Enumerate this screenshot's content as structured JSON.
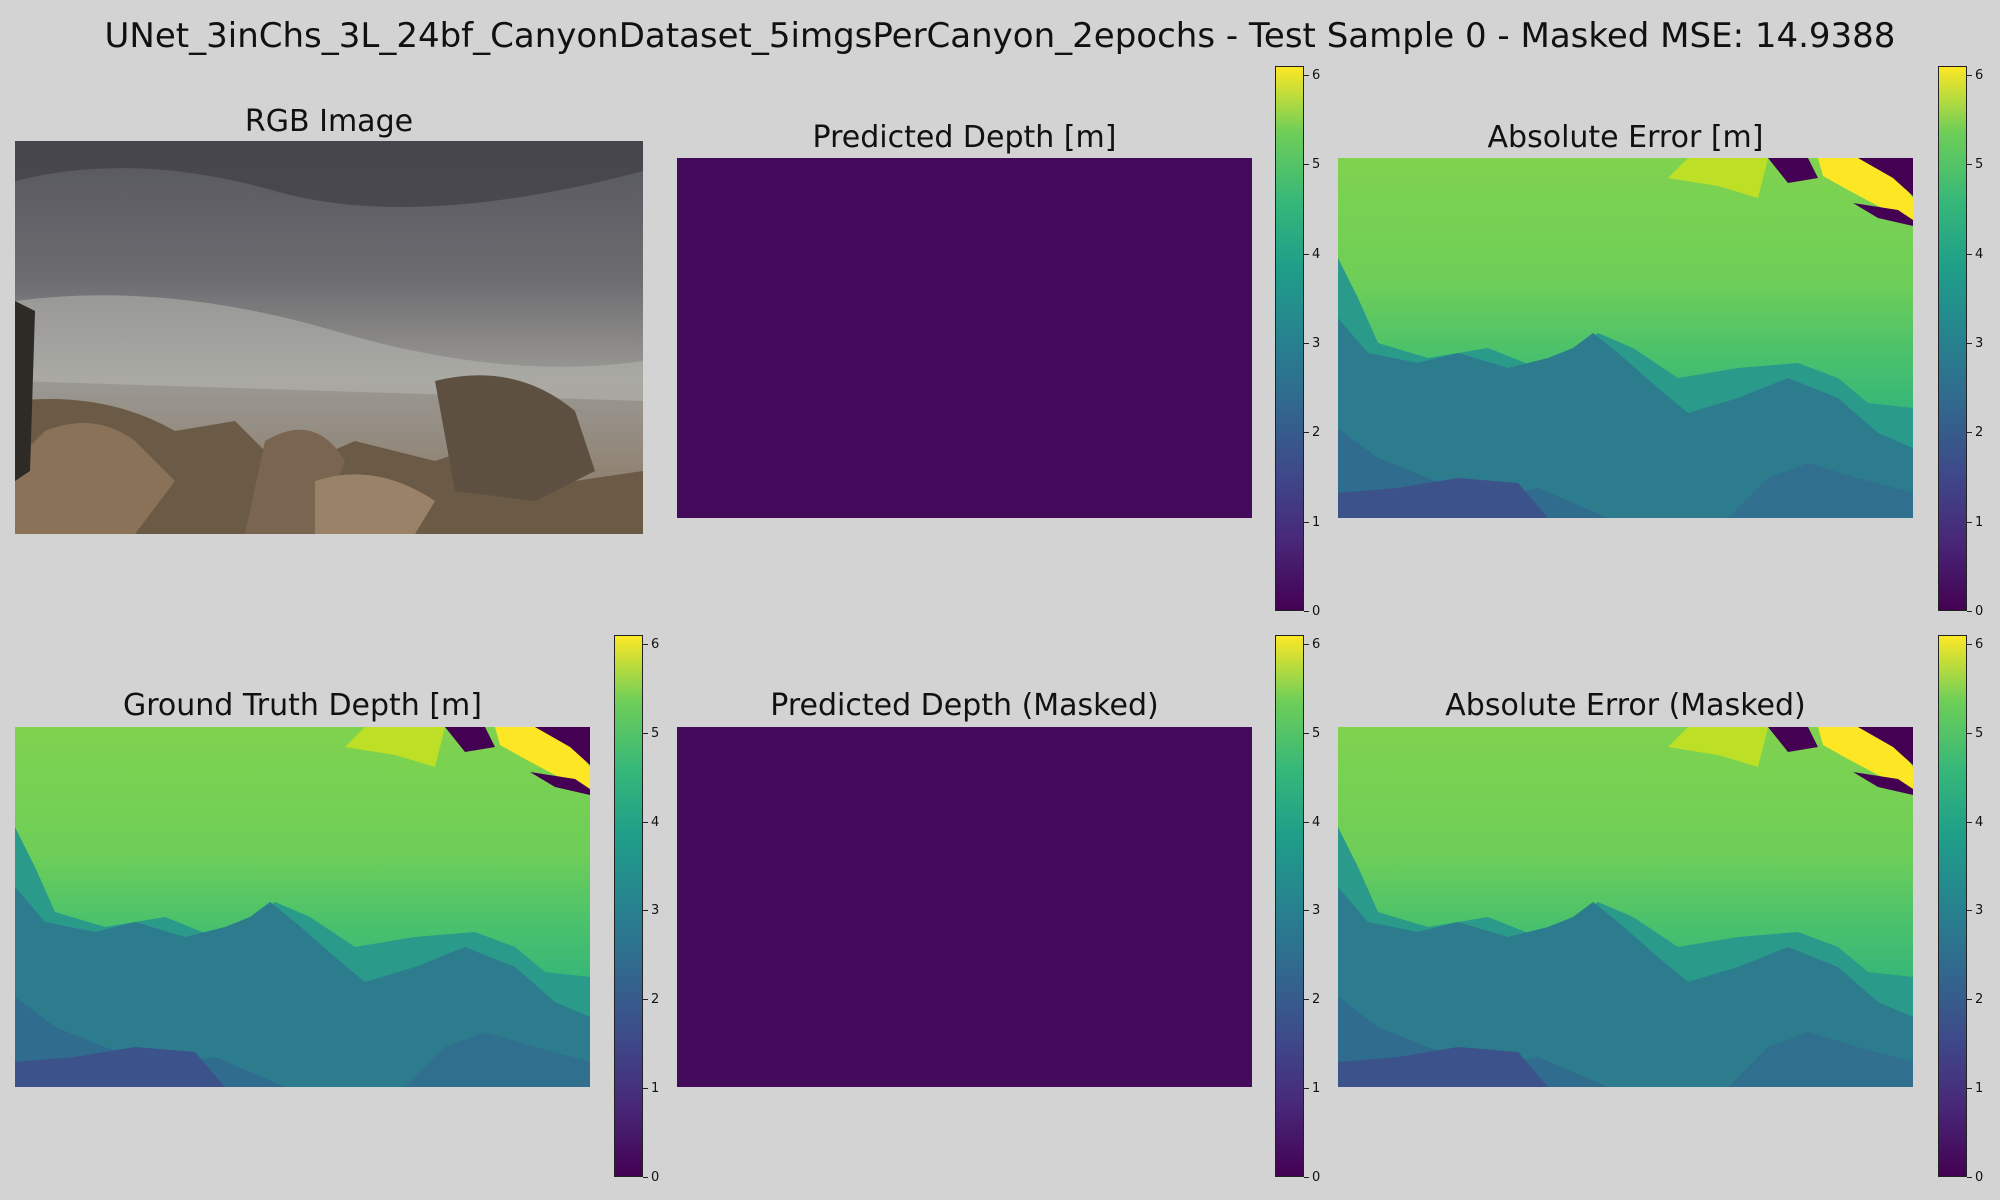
{
  "figure": {
    "title": "UNet_3inChs_3L_24bf_CanyonDataset_5imgsPerCanyon_2epochs - Test Sample 0 - Masked MSE: 14.9388"
  },
  "panels": {
    "rgb": {
      "title": "RGB Image"
    },
    "predicted": {
      "title": "Predicted Depth [m]"
    },
    "abs_error": {
      "title": "Absolute Error [m]"
    },
    "ground_truth": {
      "title": "Ground Truth Depth [m]"
    },
    "predicted_masked": {
      "title": "Predicted Depth (Masked)"
    },
    "abs_error_masked": {
      "title": "Absolute Error (Masked)"
    }
  },
  "colors": {
    "background": "#d3d3d3",
    "colormap": "viridis",
    "viridis_low": "#440154",
    "viridis_mid": "#21918c",
    "viridis_high": "#fde725"
  },
  "chart_data": [
    {
      "type": "heatmap",
      "name": "Predicted Depth [m]",
      "colormap": "viridis",
      "value_range": [
        0,
        6.1
      ],
      "approx_uniform_value": 0.1,
      "colorbar_ticks": [
        "0",
        "1",
        "2",
        "3",
        "4",
        "5",
        "6"
      ]
    },
    {
      "type": "heatmap",
      "name": "Absolute Error [m]",
      "colormap": "viridis",
      "value_range": [
        0,
        6.1
      ],
      "colorbar_ticks": [
        "0",
        "1",
        "2",
        "3",
        "4",
        "5",
        "6"
      ]
    },
    {
      "type": "heatmap",
      "name": "Ground Truth Depth [m]",
      "colormap": "viridis",
      "value_range": [
        0,
        6.1
      ],
      "colorbar_ticks": [
        "0",
        "1",
        "2",
        "3",
        "4",
        "5",
        "6"
      ]
    },
    {
      "type": "heatmap",
      "name": "Predicted Depth (Masked)",
      "colormap": "viridis",
      "value_range": [
        0,
        6.1
      ],
      "approx_uniform_value": 0.1,
      "colorbar_ticks": [
        "0",
        "1",
        "2",
        "3",
        "4",
        "5",
        "6"
      ]
    },
    {
      "type": "heatmap",
      "name": "Absolute Error (Masked)",
      "colormap": "viridis",
      "value_range": [
        0,
        6.1
      ],
      "colorbar_ticks": [
        "0",
        "1",
        "2",
        "3",
        "4",
        "5",
        "6"
      ]
    }
  ]
}
